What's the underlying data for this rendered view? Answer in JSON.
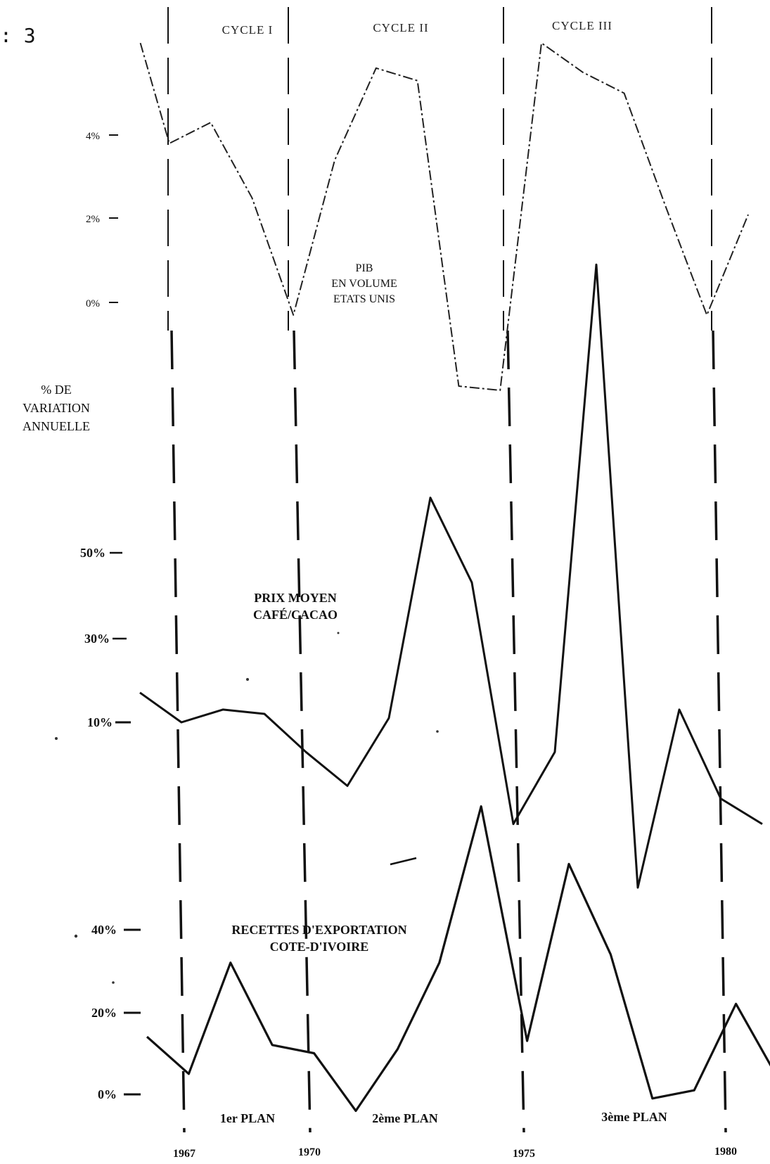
{
  "figure_label": ": 3",
  "chart_data": [
    {
      "type": "line",
      "title": "PIB EN VOLUME ETATS UNIS",
      "title_lines": [
        "PIB",
        "EN VOLUME",
        "ETATS UNIS"
      ],
      "ylabel": "% DE VARIATION ANNUELLE",
      "ylabel_lines": [
        "% DE",
        "VARIATION",
        "ANNUELLE"
      ],
      "yticks": [
        {
          "label": "4%",
          "value": 4
        },
        {
          "label": "2%",
          "value": 2
        },
        {
          "label": "0%",
          "value": 0
        }
      ],
      "series": [
        {
          "x": [
            1966.3,
            1967,
            1968,
            1969,
            1970,
            1971,
            1972,
            1973,
            1974,
            1975,
            1976,
            1977,
            1978,
            1979,
            1980,
            1981
          ],
          "values": [
            6.2,
            3.8,
            4.3,
            2.5,
            -0.3,
            3.4,
            5.6,
            5.3,
            -2.0,
            -2.1,
            6.2,
            5.5,
            5.0,
            2.3,
            -0.3,
            2.1
          ]
        }
      ]
    },
    {
      "type": "line",
      "title": "PRIX MOYEN CAFÉ/CACAO",
      "title_lines": [
        "PRIX MOYEN",
        "CAFÉ/CACAO"
      ],
      "yticks": [
        {
          "label": "50%",
          "value": 50
        },
        {
          "label": "30%",
          "value": 30
        },
        {
          "label": "10%",
          "value": 10
        }
      ],
      "series": [
        {
          "x": [
            1966,
            1967,
            1968,
            1969,
            1970,
            1971,
            1972,
            1973,
            1974,
            1975,
            1976,
            1977,
            1978,
            1979,
            1980,
            1981
          ],
          "values": [
            17,
            10,
            13,
            12,
            3,
            -5,
            11,
            63,
            43,
            -14,
            3,
            118,
            -29,
            13,
            -8,
            -14
          ]
        }
      ]
    },
    {
      "type": "line",
      "title": "RECETTES D'EXPORTATION COTE-D'IVOIRE",
      "title_lines": [
        "RECETTES D'EXPORTATION",
        "COTE-D'IVOIRE"
      ],
      "yticks": [
        {
          "label": "40%",
          "value": 40
        },
        {
          "label": "20%",
          "value": 20
        },
        {
          "label": "0%",
          "value": 0
        }
      ],
      "series": [
        {
          "x": [
            1966,
            1967,
            1968,
            1969,
            1970,
            1971,
            1972,
            1973,
            1974,
            1975,
            1976,
            1977,
            1978,
            1979,
            1980,
            1981
          ],
          "values": [
            14,
            5,
            32,
            12,
            10,
            -4,
            11,
            32,
            70,
            13,
            56,
            34,
            -1,
            1,
            22,
            4
          ]
        }
      ]
    }
  ],
  "cycles": [
    "CYCLE I",
    "CYCLE II",
    "CYCLE III"
  ],
  "plans": [
    "1er PLAN",
    "2ème PLAN",
    "3ème PLAN"
  ],
  "year_labels": [
    {
      "label": "1967",
      "x": 1967
    },
    {
      "label": "1970",
      "x": 1970
    },
    {
      "label": "1975",
      "x": 1975
    },
    {
      "label": "1980",
      "x": 1980
    }
  ]
}
